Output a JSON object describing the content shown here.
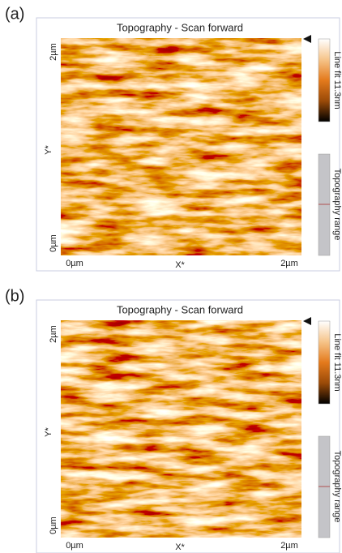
{
  "panels": [
    {
      "label": "(a)",
      "title": "Topography - Scan forward",
      "y_label": "Y*",
      "x_label": "X*",
      "y_ticks": [
        "2µm",
        "0µm"
      ],
      "x_ticks": [
        "0µm",
        "2µm"
      ],
      "colorbar_label": "Line fit 11.3nm",
      "range_label": "Topography range"
    },
    {
      "label": "(b)",
      "title": "Topography - Scan forward",
      "y_label": "Y*",
      "x_label": "X*",
      "y_ticks": [
        "2µm",
        "0µm"
      ],
      "x_ticks": [
        "0µm",
        "2µm"
      ],
      "colorbar_label": "Line fit 11.3nm",
      "range_label": "Topography range"
    }
  ]
}
